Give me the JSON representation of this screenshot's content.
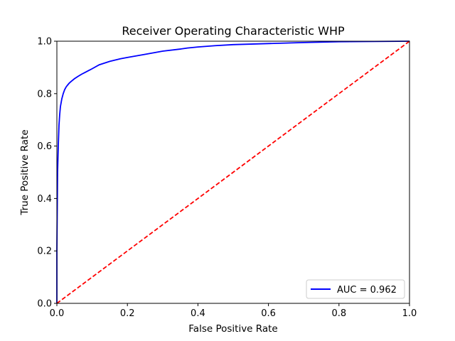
{
  "chart_data": {
    "type": "line",
    "title": "Receiver Operating Characteristic WHP",
    "xlabel": "False Positive Rate",
    "ylabel": "True Positive Rate",
    "xlim": [
      0.0,
      1.0
    ],
    "ylim": [
      0.0,
      1.0
    ],
    "xticks": [
      "0.0",
      "0.2",
      "0.4",
      "0.6",
      "0.8",
      "1.0"
    ],
    "yticks": [
      "0.0",
      "0.2",
      "0.4",
      "0.6",
      "0.8",
      "1.0"
    ],
    "grid": false,
    "legend_position": "lower-right",
    "series": [
      {
        "name": "AUC = 0.962",
        "color": "#0000ff",
        "style": "solid",
        "x": [
          0.0,
          0.0,
          0.002,
          0.004,
          0.006,
          0.008,
          0.01,
          0.014,
          0.018,
          0.022,
          0.026,
          0.03,
          0.035,
          0.04,
          0.05,
          0.06,
          0.07,
          0.08,
          0.09,
          0.1,
          0.12,
          0.15,
          0.18,
          0.2,
          0.25,
          0.3,
          0.35,
          0.37,
          0.4,
          0.45,
          0.5,
          0.6,
          0.7,
          0.8,
          0.9,
          1.0
        ],
        "y": [
          0.0,
          0.2,
          0.5,
          0.6,
          0.68,
          0.72,
          0.75,
          0.78,
          0.8,
          0.815,
          0.825,
          0.832,
          0.84,
          0.846,
          0.857,
          0.866,
          0.874,
          0.881,
          0.888,
          0.895,
          0.91,
          0.923,
          0.933,
          0.938,
          0.95,
          0.962,
          0.97,
          0.974,
          0.978,
          0.983,
          0.987,
          0.991,
          0.995,
          0.998,
          0.999,
          1.0
        ]
      },
      {
        "name": "",
        "color": "#ff0000",
        "style": "dashed",
        "x": [
          0.0,
          1.0
        ],
        "y": [
          0.0,
          1.0
        ]
      }
    ],
    "legend": [
      {
        "label": "AUC = 0.962",
        "color": "#0000ff"
      }
    ]
  }
}
